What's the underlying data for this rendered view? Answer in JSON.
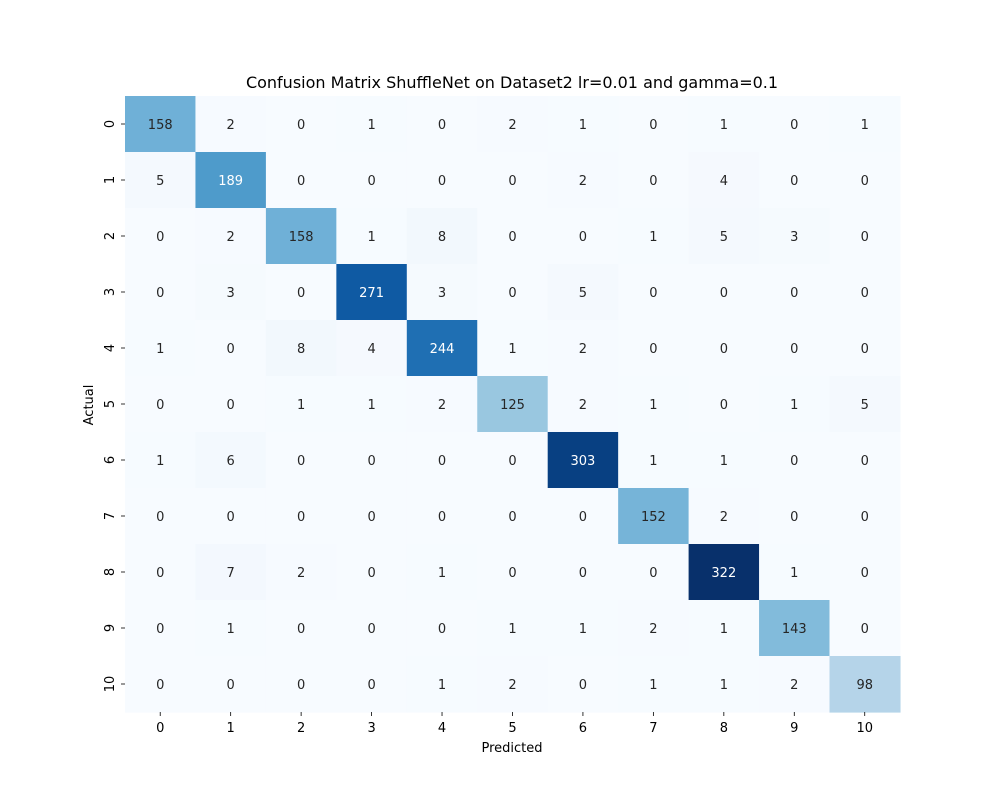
{
  "chart_data": {
    "type": "heatmap",
    "title": "Confusion Matrix ShuffleNet on Dataset2 lr=0.01 and gamma=0.1",
    "xlabel": "Predicted",
    "ylabel": "Actual",
    "x_labels": [
      "0",
      "1",
      "2",
      "3",
      "4",
      "5",
      "6",
      "7",
      "8",
      "9",
      "10"
    ],
    "y_labels": [
      "0",
      "1",
      "2",
      "3",
      "4",
      "5",
      "6",
      "7",
      "8",
      "9",
      "10"
    ],
    "values": [
      [
        158,
        2,
        0,
        1,
        0,
        2,
        1,
        0,
        1,
        0,
        1
      ],
      [
        5,
        189,
        0,
        0,
        0,
        0,
        2,
        0,
        4,
        0,
        0
      ],
      [
        0,
        2,
        158,
        1,
        8,
        0,
        0,
        1,
        5,
        3,
        0
      ],
      [
        0,
        3,
        0,
        271,
        3,
        0,
        5,
        0,
        0,
        0,
        0
      ],
      [
        1,
        0,
        8,
        4,
        244,
        1,
        2,
        0,
        0,
        0,
        0
      ],
      [
        0,
        0,
        1,
        1,
        2,
        125,
        2,
        1,
        0,
        1,
        5
      ],
      [
        1,
        6,
        0,
        0,
        0,
        0,
        303,
        1,
        1,
        0,
        0
      ],
      [
        0,
        0,
        0,
        0,
        0,
        0,
        0,
        152,
        2,
        0,
        0
      ],
      [
        0,
        7,
        2,
        0,
        1,
        0,
        0,
        0,
        322,
        1,
        0
      ],
      [
        0,
        1,
        0,
        0,
        0,
        1,
        1,
        2,
        1,
        143,
        0
      ],
      [
        0,
        0,
        0,
        0,
        1,
        2,
        0,
        1,
        1,
        2,
        98
      ]
    ],
    "colormap": "Blues",
    "colorbar": false,
    "grid": false
  }
}
